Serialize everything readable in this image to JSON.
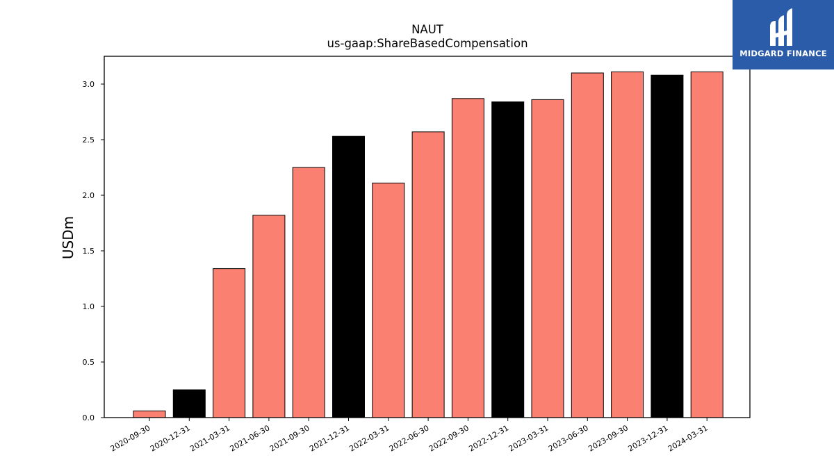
{
  "chart_data": {
    "type": "bar",
    "title": "NAUT",
    "subtitle": "us-gaap:ShareBasedCompensation",
    "xlabel": "",
    "ylabel": "USDm",
    "ylim": [
      0,
      3.25
    ],
    "yticks": [
      "0.0",
      "0.5",
      "1.0",
      "1.5",
      "2.0",
      "2.5",
      "3.0"
    ],
    "grid": false,
    "categories": [
      "2020-09-30",
      "2020-12-31",
      "2021-03-31",
      "2021-06-30",
      "2021-09-30",
      "2021-12-31",
      "2022-03-31",
      "2022-06-30",
      "2022-09-30",
      "2022-12-31",
      "2023-03-31",
      "2023-06-30",
      "2023-09-30",
      "2023-12-31",
      "2024-03-31"
    ],
    "values": [
      0.06,
      0.25,
      1.34,
      1.82,
      2.25,
      2.53,
      2.11,
      2.57,
      2.87,
      2.84,
      2.86,
      3.1,
      3.11,
      3.08,
      3.11
    ],
    "bar_colors": [
      "#fa8072",
      "#000000",
      "#fa8072",
      "#fa8072",
      "#fa8072",
      "#000000",
      "#fa8072",
      "#fa8072",
      "#fa8072",
      "#000000",
      "#fa8072",
      "#fa8072",
      "#fa8072",
      "#000000",
      "#fa8072"
    ]
  },
  "logo": {
    "text": "MIDGARD FINANCE",
    "background": "#2a5caa"
  }
}
